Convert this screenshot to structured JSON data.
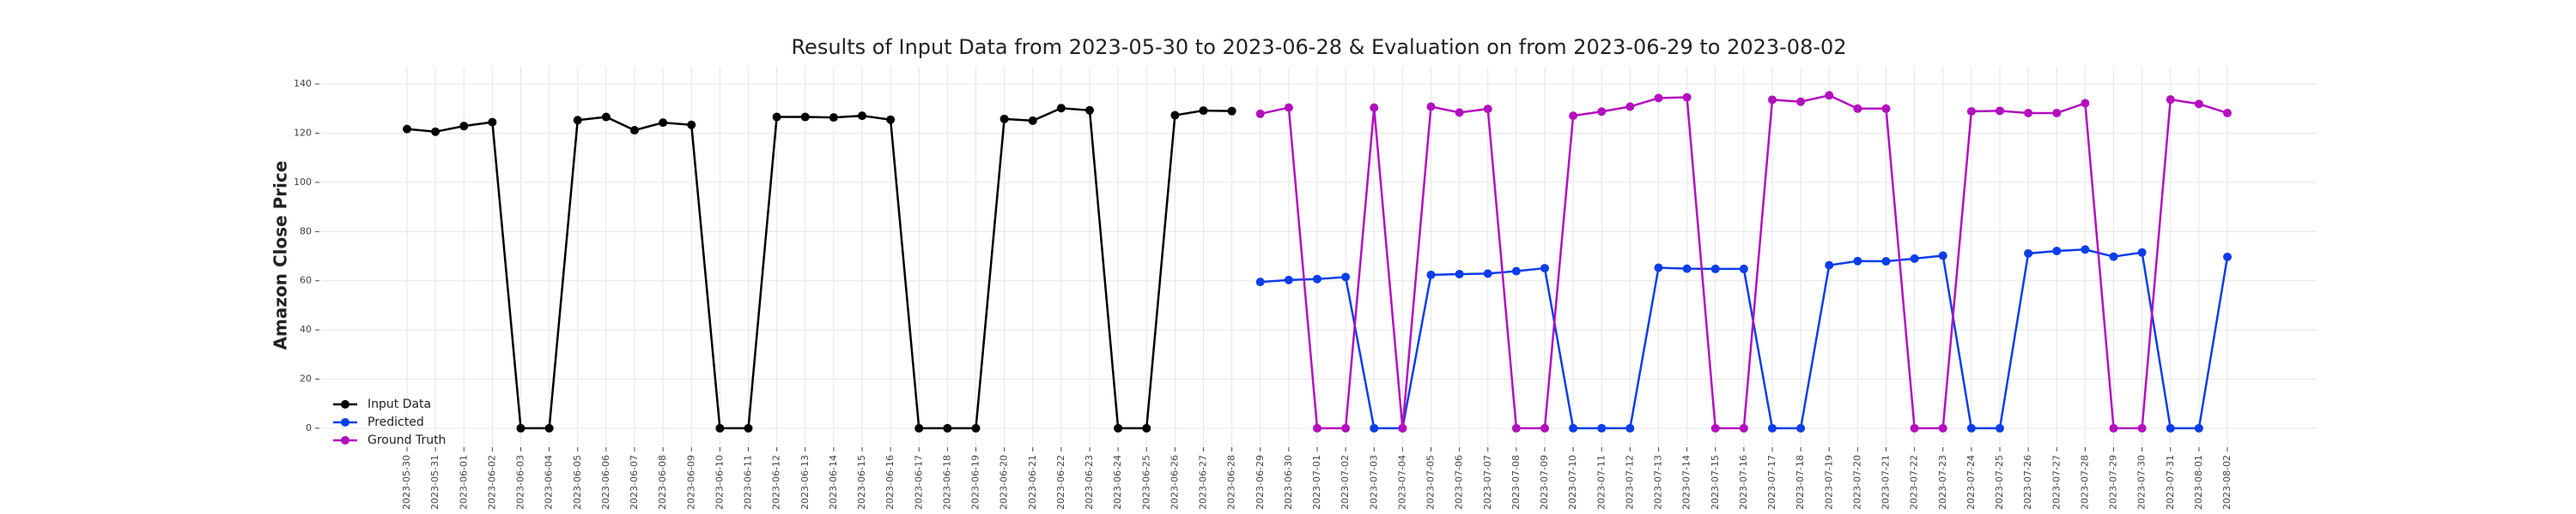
{
  "chart_data": {
    "type": "line",
    "title": "Results of Input Data from 2023-05-30 to 2023-06-28 & Evaluation on from 2023-06-29 to 2023-08-02",
    "y_label": "Amazon Close Price",
    "x": [
      "2023-05-30",
      "2023-05-31",
      "2023-06-01",
      "2023-06-02",
      "2023-06-03",
      "2023-06-04",
      "2023-06-05",
      "2023-06-06",
      "2023-06-07",
      "2023-06-08",
      "2023-06-09",
      "2023-06-10",
      "2023-06-11",
      "2023-06-12",
      "2023-06-13",
      "2023-06-14",
      "2023-06-15",
      "2023-06-16",
      "2023-06-17",
      "2023-06-18",
      "2023-06-19",
      "2023-06-20",
      "2023-06-21",
      "2023-06-22",
      "2023-06-23",
      "2023-06-24",
      "2023-06-25",
      "2023-06-26",
      "2023-06-27",
      "2023-06-28",
      "2023-06-29",
      "2023-06-30",
      "2023-07-01",
      "2023-07-02",
      "2023-07-03",
      "2023-07-04",
      "2023-07-05",
      "2023-07-06",
      "2023-07-07",
      "2023-07-08",
      "2023-07-09",
      "2023-07-10",
      "2023-07-11",
      "2023-07-12",
      "2023-07-13",
      "2023-07-14",
      "2023-07-15",
      "2023-07-16",
      "2023-07-17",
      "2023-07-18",
      "2023-07-19",
      "2023-07-20",
      "2023-07-21",
      "2023-07-22",
      "2023-07-23",
      "2023-07-24",
      "2023-07-25",
      "2023-07-26",
      "2023-07-27",
      "2023-07-28",
      "2023-07-29",
      "2023-07-30",
      "2023-07-31",
      "2023-08-01",
      "2023-08-02"
    ],
    "series": [
      {
        "name": "Input Data",
        "color": "#000000",
        "values": [
          121.7,
          120.6,
          122.9,
          124.5,
          0,
          0,
          125.3,
          126.6,
          121.2,
          124.3,
          123.4,
          0,
          0,
          126.6,
          126.6,
          126.4,
          127.1,
          125.5,
          0,
          0,
          0,
          125.8,
          125.1,
          130.2,
          129.3,
          0,
          0,
          127.3,
          129.2,
          129.0,
          null,
          null,
          null,
          null,
          null,
          null,
          null,
          null,
          null,
          null,
          null,
          null,
          null,
          null,
          null,
          null,
          null,
          null,
          null,
          null,
          null,
          null,
          null,
          null,
          null,
          null,
          null,
          null,
          null,
          null,
          null,
          null,
          null,
          null,
          null
        ]
      },
      {
        "name": "Predicted",
        "color": "#0b3ee8",
        "values": [
          null,
          null,
          null,
          null,
          null,
          null,
          null,
          null,
          null,
          null,
          null,
          null,
          null,
          null,
          null,
          null,
          null,
          null,
          null,
          null,
          null,
          null,
          null,
          null,
          null,
          null,
          null,
          null,
          null,
          null,
          59.5,
          60.3,
          60.7,
          61.5,
          0,
          0,
          62.4,
          62.7,
          62.9,
          63.9,
          65.1,
          0,
          0,
          0,
          65.3,
          64.9,
          64.8,
          64.8,
          0,
          0,
          66.3,
          68.0,
          67.9,
          69.0,
          70.2,
          0,
          0,
          71.1,
          72.1,
          72.7,
          69.8,
          71.5,
          0,
          0,
          69.7
        ]
      },
      {
        "name": "Ground Truth",
        "color": "#b30fbf",
        "values": [
          null,
          null,
          null,
          null,
          null,
          null,
          null,
          null,
          null,
          null,
          null,
          null,
          null,
          null,
          null,
          null,
          null,
          null,
          null,
          null,
          null,
          null,
          null,
          null,
          null,
          null,
          null,
          null,
          null,
          null,
          127.9,
          130.4,
          0,
          0,
          130.4,
          0,
          130.8,
          128.4,
          129.9,
          0,
          0,
          127.1,
          128.8,
          130.8,
          134.3,
          134.6,
          0,
          0,
          133.6,
          132.8,
          135.4,
          130.0,
          130.0,
          0,
          0,
          128.9,
          129.1,
          128.2,
          128.2,
          132.2,
          0,
          0,
          133.7,
          131.9,
          128.2
        ]
      }
    ],
    "ylim": [
      -7,
      147
    ],
    "yticks": [
      0,
      20,
      40,
      60,
      80,
      100,
      120,
      140
    ],
    "grid": true,
    "legend": "lower left"
  }
}
